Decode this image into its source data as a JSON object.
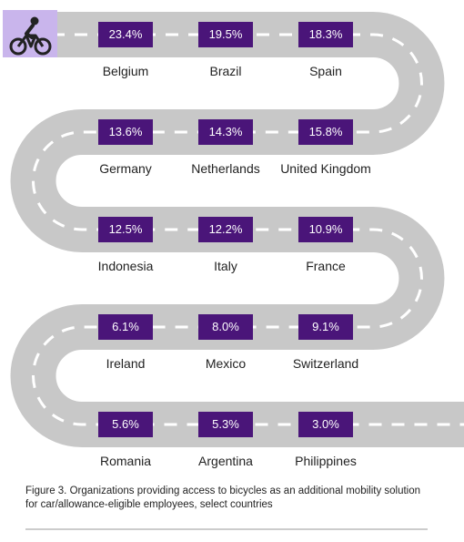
{
  "chart_data": {
    "type": "table",
    "countries": [
      "Belgium",
      "Brazil",
      "Spain",
      "Germany",
      "Netherlands",
      "United Kingdom",
      "Indonesia",
      "Italy",
      "France",
      "Ireland",
      "Mexico",
      "Switzerland",
      "Romania",
      "Argentina",
      "Philippines"
    ],
    "values": [
      "23.4%",
      "19.5%",
      "18.3%",
      "13.6%",
      "14.3%",
      "15.8%",
      "12.5%",
      "12.2%",
      "10.9%",
      "6.1%",
      "8.0%",
      "9.1%",
      "5.6%",
      "5.3%",
      "3.0%"
    ],
    "colors": {
      "value_box": "#4a1579",
      "road": "#c8c8c8",
      "lane_marking": "#ffffff",
      "icon_tile": "#c9b5ec"
    }
  },
  "icon": "bicycle-icon",
  "caption": {
    "line1": "Figure 3. Organizations providing access to bicycles as an additional mobility solution",
    "line2": "for car/allowance-eligible employees, select countries"
  }
}
